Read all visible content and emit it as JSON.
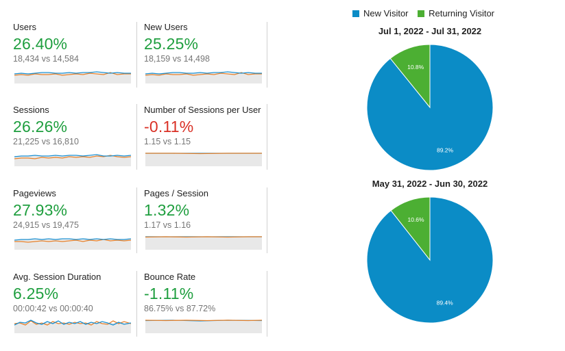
{
  "colors": {
    "current": "#1a8fd0",
    "previous": "#e8812a",
    "up": "#1e9e3e",
    "down": "#d93025",
    "new_visitor": "#0b8cc6",
    "returning_visitor": "#4caf33"
  },
  "metrics": [
    {
      "label": "Users",
      "change": "26.40%",
      "trend": "up",
      "comparison": "18,434 vs 14,584"
    },
    {
      "label": "New Users",
      "change": "25.25%",
      "trend": "up",
      "comparison": "18,159 vs 14,498"
    },
    {
      "label": "Sessions",
      "change": "26.26%",
      "trend": "up",
      "comparison": "21,225 vs 16,810"
    },
    {
      "label": "Number of Sessions per User",
      "change": "-0.11%",
      "trend": "down",
      "comparison": "1.15 vs 1.15"
    },
    {
      "label": "Pageviews",
      "change": "27.93%",
      "trend": "up",
      "comparison": "24,915 vs 19,475"
    },
    {
      "label": "Pages / Session",
      "change": "1.32%",
      "trend": "up",
      "comparison": "1.17 vs 1.16"
    },
    {
      "label": "Avg. Session Duration",
      "change": "6.25%",
      "trend": "up",
      "comparison": "00:00:42 vs 00:00:40"
    },
    {
      "label": "Bounce Rate",
      "change": "-1.11%",
      "trend": "up",
      "comparison": "86.75% vs 87.72%"
    }
  ],
  "legend": [
    {
      "label": "New Visitor",
      "color": "#0b8cc6"
    },
    {
      "label": "Returning Visitor",
      "color": "#4caf33"
    }
  ],
  "chart_data": [
    {
      "type": "pie",
      "title": "Jul 1, 2022 - Jul 31, 2022",
      "categories": [
        "New Visitor",
        "Returning Visitor"
      ],
      "values": [
        89.2,
        10.8
      ],
      "labels": [
        "89.2%",
        "10.8%"
      ]
    },
    {
      "type": "pie",
      "title": "May 31, 2022 - Jun 30, 2022",
      "categories": [
        "New Visitor",
        "Returning Visitor"
      ],
      "values": [
        89.4,
        10.6
      ],
      "labels": [
        "89.4%",
        "10.6%"
      ]
    }
  ]
}
